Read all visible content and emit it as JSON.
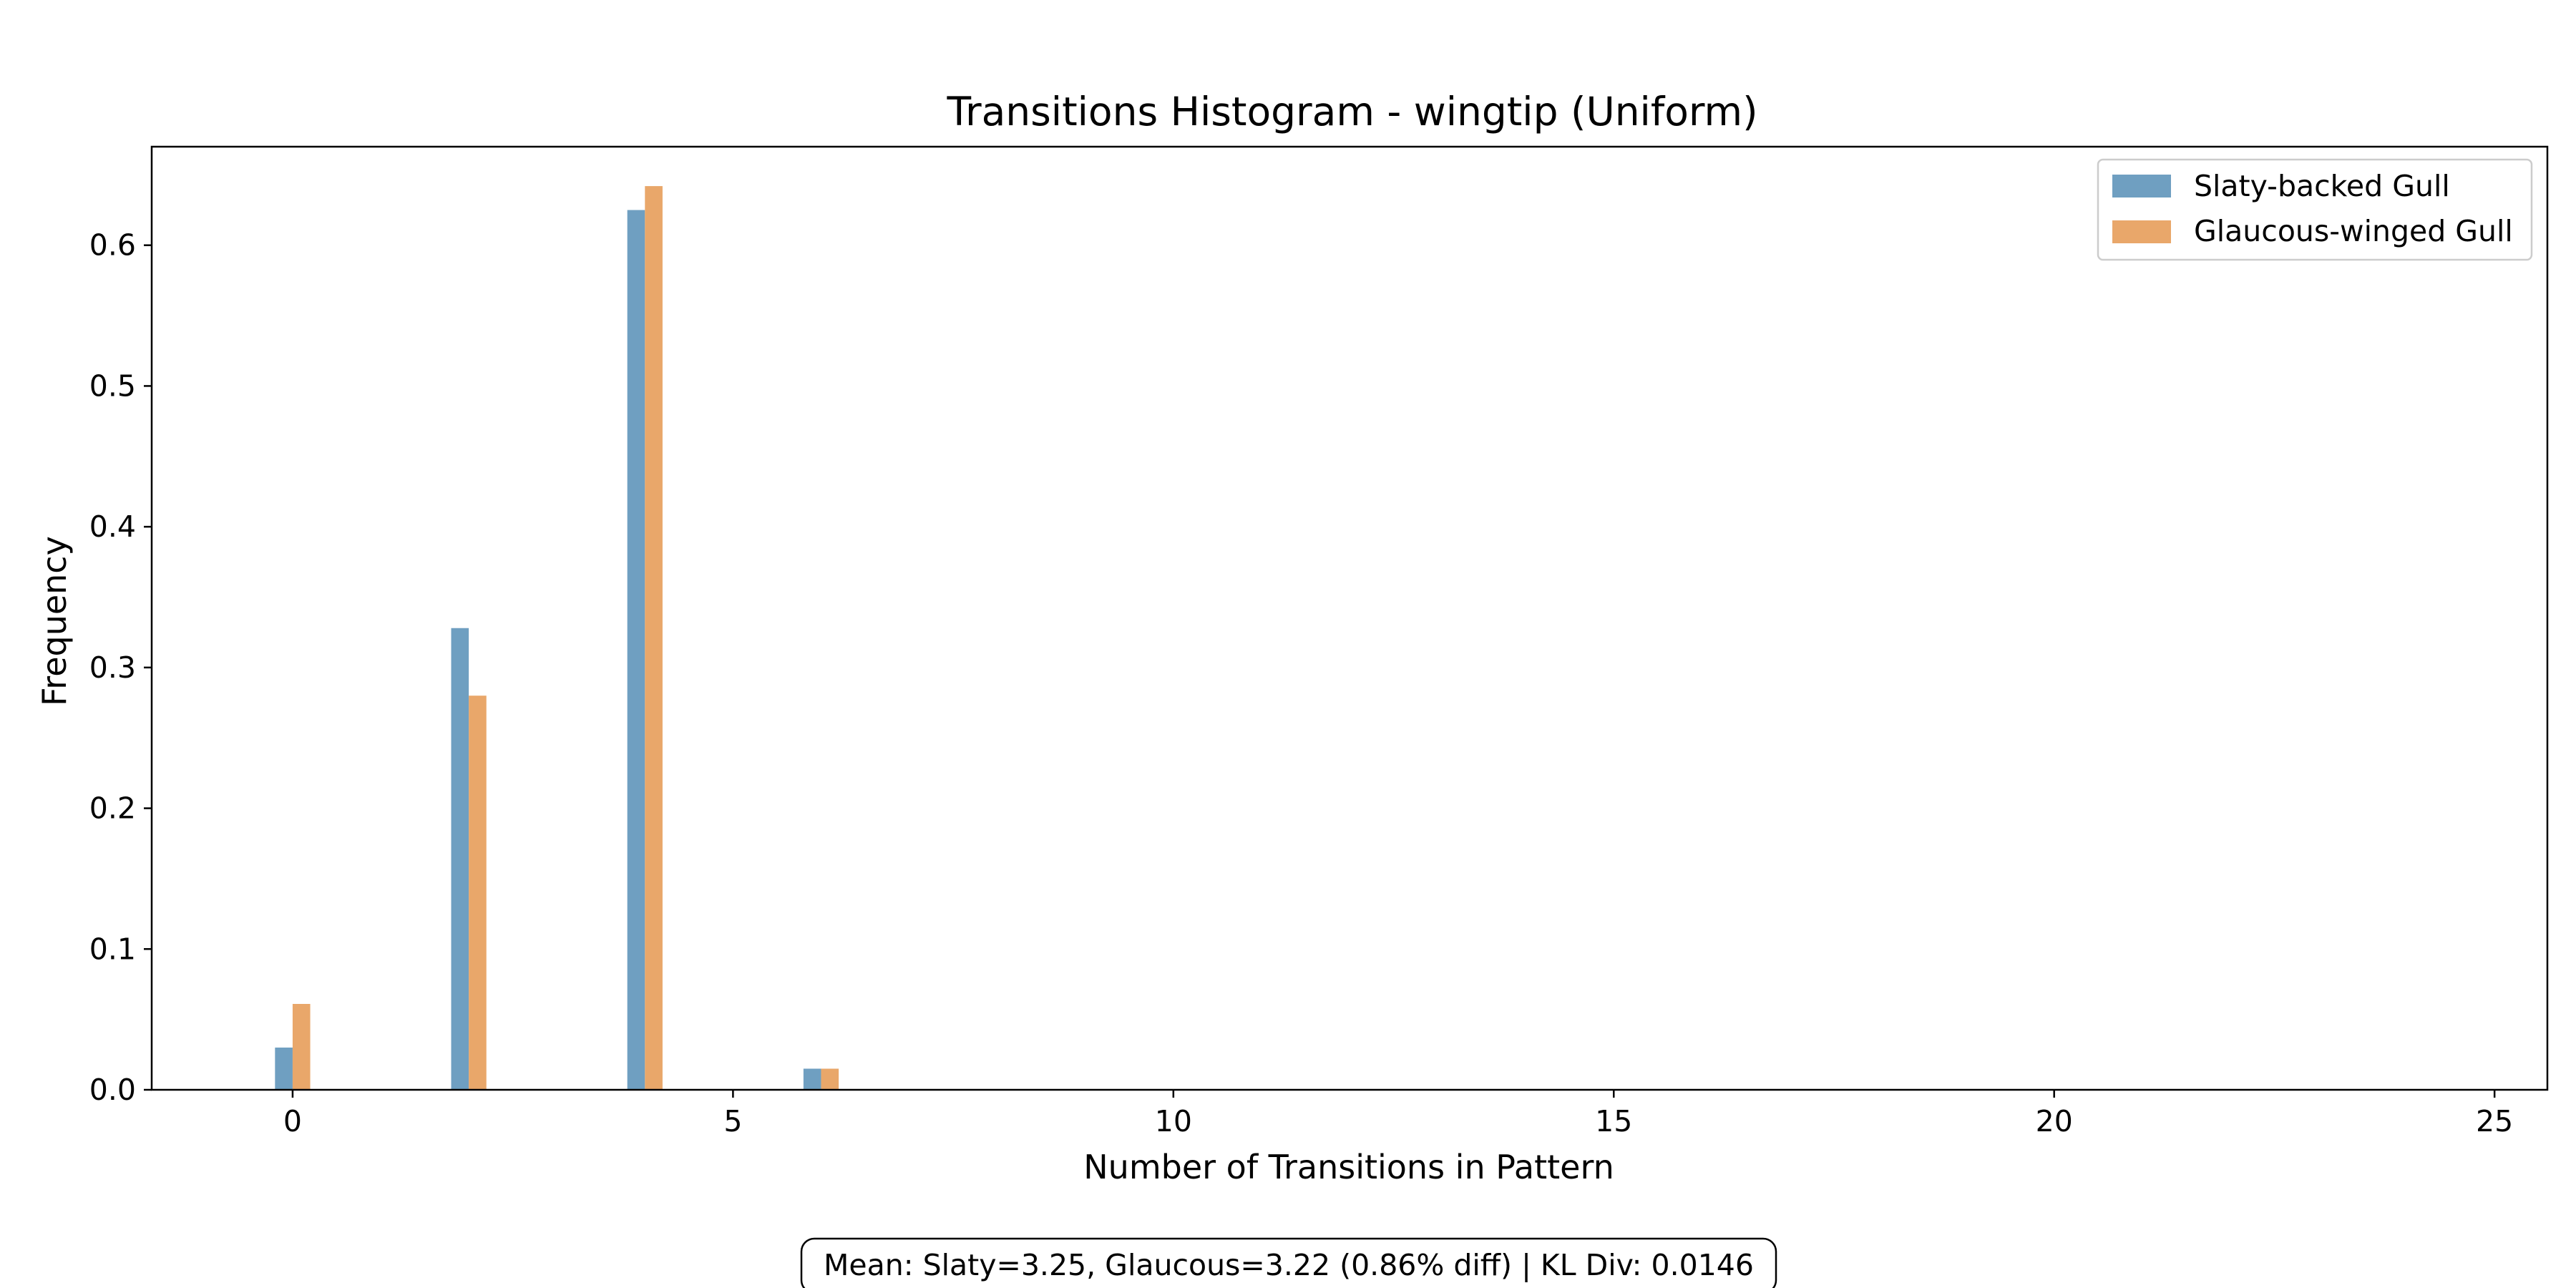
{
  "chart_data": {
    "type": "bar",
    "title": "Transitions Histogram - wingtip (Uniform)",
    "xlabel": "Number of Transitions in Pattern",
    "ylabel": "Frequency",
    "xlim": [
      -1.6,
      25.6
    ],
    "ylim": [
      0,
      0.67
    ],
    "x_ticks": [
      0,
      5,
      10,
      15,
      20,
      25
    ],
    "y_ticks": [
      0.0,
      0.1,
      0.2,
      0.3,
      0.4,
      0.5,
      0.6
    ],
    "x_tick_labels": [
      "0",
      "5",
      "10",
      "15",
      "20",
      "25"
    ],
    "y_tick_labels": [
      "0.0",
      "0.1",
      "0.2",
      "0.3",
      "0.4",
      "0.5",
      "0.6"
    ],
    "bar_width": 0.4,
    "grid": false,
    "legend_position": "top-right",
    "series": [
      {
        "name": "Slaty-backed Gull",
        "color": "#6f9fc1",
        "x": [
          0,
          2,
          4,
          6
        ],
        "values": [
          0.03,
          0.328,
          0.625,
          0.015
        ]
      },
      {
        "name": "Glaucous-winged Gull",
        "color": "#e9a76a",
        "x": [
          0,
          2,
          4,
          6
        ],
        "values": [
          0.061,
          0.28,
          0.642,
          0.015
        ]
      }
    ],
    "annotation": "Mean: Slaty=3.25, Glaucous=3.22 (0.86% diff) | KL Div: 0.0146"
  }
}
